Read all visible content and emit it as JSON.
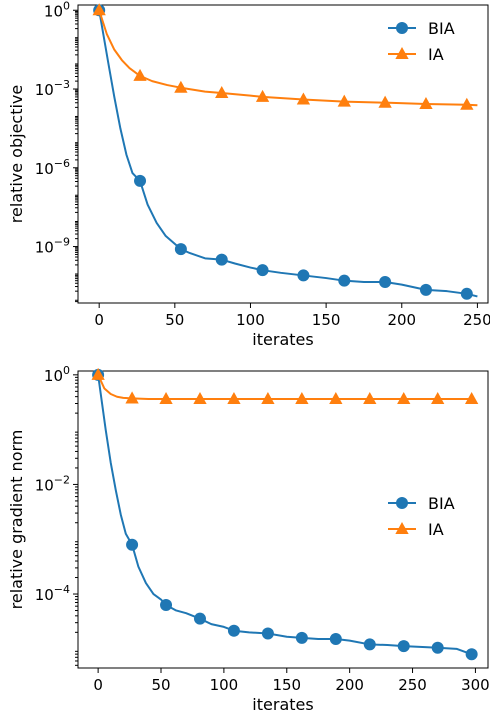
{
  "chart_data": [
    {
      "type": "line",
      "xlabel": "iterates",
      "ylabel": "relative objective",
      "yscale": "log",
      "xlim": [
        -14,
        257
      ],
      "ylim_log10": [
        -11.15,
        0.2
      ],
      "xticks": [
        0,
        50,
        100,
        150,
        200,
        250
      ],
      "xtick_labels": [
        "0",
        "50",
        "100",
        "150",
        "200",
        "250"
      ],
      "yticks_log10": [
        0,
        -3,
        -6,
        -9
      ],
      "ytick_bases": [
        "10",
        "10",
        "10",
        "10"
      ],
      "ytick_exponents": [
        "0",
        "−3",
        "−6",
        "−9"
      ],
      "legend": {
        "position": "upper-right",
        "entries": [
          "BIA",
          "IA"
        ]
      },
      "series": [
        {
          "name": "BIA",
          "color": "#1f77b4",
          "marker": "circle",
          "x": [
            0,
            3,
            6,
            10,
            14,
            18,
            22,
            27,
            32,
            38,
            44,
            50,
            54,
            60,
            70,
            81,
            90,
            100,
            108,
            120,
            135,
            150,
            162,
            175,
            189,
            200,
            216,
            230,
            243,
            250
          ],
          "y_log10": [
            0,
            -1.0,
            -2.0,
            -3.3,
            -4.5,
            -5.5,
            -6.2,
            -6.5,
            -7.4,
            -8.1,
            -8.6,
            -8.9,
            -9.1,
            -9.25,
            -9.45,
            -9.5,
            -9.65,
            -9.8,
            -9.9,
            -10.0,
            -10.1,
            -10.2,
            -10.3,
            -10.35,
            -10.35,
            -10.45,
            -10.65,
            -10.7,
            -10.8,
            -10.9
          ],
          "markers_x": [
            0,
            27,
            54,
            81,
            108,
            135,
            162,
            189,
            216,
            243
          ],
          "markers_y_log10": [
            0,
            -6.5,
            -9.1,
            -9.5,
            -9.9,
            -10.1,
            -10.3,
            -10.35,
            -10.65,
            -10.8
          ]
        },
        {
          "name": "IA",
          "color": "#ff7f0e",
          "marker": "triangle",
          "x": [
            0,
            5,
            10,
            15,
            20,
            27,
            35,
            45,
            54,
            70,
            81,
            100,
            108,
            135,
            162,
            189,
            216,
            243,
            250
          ],
          "y_log10": [
            0,
            -0.9,
            -1.5,
            -1.9,
            -2.2,
            -2.5,
            -2.7,
            -2.85,
            -2.95,
            -3.1,
            -3.15,
            -3.25,
            -3.3,
            -3.4,
            -3.48,
            -3.52,
            -3.57,
            -3.6,
            -3.62
          ],
          "markers_x": [
            0,
            27,
            54,
            81,
            108,
            135,
            162,
            189,
            216,
            243
          ],
          "markers_y_log10": [
            0,
            -2.5,
            -2.95,
            -3.15,
            -3.3,
            -3.4,
            -3.48,
            -3.52,
            -3.57,
            -3.6
          ]
        }
      ]
    },
    {
      "type": "line",
      "xlabel": "iterates",
      "ylabel": "relative gradient norm",
      "yscale": "log",
      "xlim": [
        -16,
        310
      ],
      "ylim_log10": [
        -5.35,
        0.07
      ],
      "xticks": [
        0,
        50,
        100,
        150,
        200,
        250,
        300
      ],
      "xtick_labels": [
        "0",
        "50",
        "100",
        "150",
        "200",
        "250",
        "300"
      ],
      "yticks_log10": [
        0,
        -2,
        -4
      ],
      "ytick_bases": [
        "10",
        "10",
        "10"
      ],
      "ytick_exponents": [
        "0",
        "−2",
        "−4"
      ],
      "legend": {
        "position": "center-right",
        "entries": [
          "BIA",
          "IA"
        ]
      },
      "series": [
        {
          "name": "BIA",
          "color": "#1f77b4",
          "marker": "circle",
          "x": [
            0,
            3,
            6,
            10,
            14,
            18,
            22,
            27,
            32,
            38,
            44,
            50,
            54,
            62,
            70,
            81,
            90,
            100,
            108,
            120,
            135,
            150,
            162,
            175,
            189,
            200,
            216,
            230,
            243,
            260,
            270,
            285,
            297
          ],
          "y_log10": [
            0,
            -0.5,
            -1.0,
            -1.6,
            -2.1,
            -2.55,
            -2.9,
            -3.1,
            -3.5,
            -3.8,
            -4.0,
            -4.1,
            -4.2,
            -4.3,
            -4.35,
            -4.45,
            -4.55,
            -4.6,
            -4.67,
            -4.7,
            -4.72,
            -4.78,
            -4.8,
            -4.82,
            -4.82,
            -4.85,
            -4.92,
            -4.93,
            -4.95,
            -4.97,
            -4.98,
            -5.0,
            -5.1
          ],
          "markers_x": [
            0,
            27,
            54,
            81,
            108,
            135,
            162,
            189,
            216,
            243,
            270,
            297
          ],
          "markers_y_log10": [
            0,
            -3.1,
            -4.2,
            -4.45,
            -4.67,
            -4.72,
            -4.8,
            -4.82,
            -4.92,
            -4.95,
            -4.98,
            -5.1
          ]
        },
        {
          "name": "IA",
          "color": "#ff7f0e",
          "marker": "triangle",
          "x": [
            0,
            5,
            10,
            15,
            20,
            27,
            40,
            54,
            81,
            108,
            135,
            162,
            189,
            216,
            243,
            270,
            297
          ],
          "y_log10": [
            0,
            -0.25,
            -0.35,
            -0.4,
            -0.42,
            -0.43,
            -0.44,
            -0.44,
            -0.44,
            -0.44,
            -0.44,
            -0.44,
            -0.44,
            -0.44,
            -0.44,
            -0.44,
            -0.44
          ],
          "markers_x": [
            0,
            27,
            54,
            81,
            108,
            135,
            162,
            189,
            216,
            243,
            270,
            297
          ],
          "markers_y_log10": [
            0,
            -0.43,
            -0.44,
            -0.44,
            -0.44,
            -0.44,
            -0.44,
            -0.44,
            -0.44,
            -0.44,
            -0.44,
            -0.44
          ]
        }
      ]
    }
  ]
}
